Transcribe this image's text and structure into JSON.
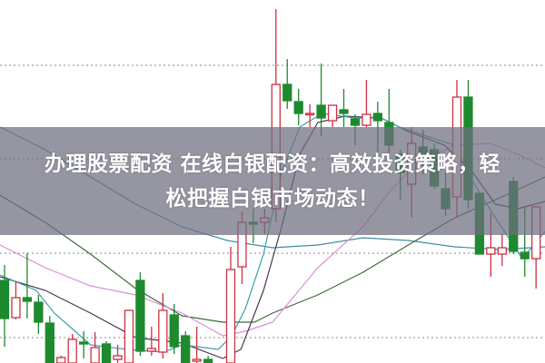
{
  "banner": {
    "line1": "办理股票配资 在线白银配资：高效投资策略，轻",
    "line2": "松把握白银市场动态！"
  },
  "chart_data": {
    "type": "candlestick",
    "title": "",
    "xlabel": "",
    "ylabel": "",
    "grid": "horizontal-dotted",
    "gridlines": [
      28,
      121,
      225,
      328
    ],
    "colors": {
      "up": "#d03040",
      "down": "#1e8a2e",
      "grid": "#a0a0a0"
    },
    "candles": [
      [
        91,
        108,
        18,
        49
      ],
      [
        50,
        90,
        48,
        72
      ],
      [
        72,
        121,
        49,
        68
      ],
      [
        67,
        75,
        32,
        45
      ],
      [
        44,
        52,
        -5,
        0
      ],
      [
        0,
        8,
        0,
        6
      ],
      [
        0,
        32,
        0,
        26
      ],
      [
        23,
        35,
        5,
        21
      ],
      [
        0,
        34,
        0,
        17
      ],
      [
        21,
        24,
        -2,
        0
      ],
      [
        4,
        20,
        0,
        8
      ],
      [
        0,
        58,
        0,
        58
      ],
      [
        91,
        100,
        8,
        13
      ],
      [
        13,
        40,
        8,
        16
      ],
      [
        12,
        77,
        5,
        58
      ],
      [
        53,
        65,
        10,
        18
      ],
      [
        30,
        35,
        -2,
        0
      ],
      [
        2,
        40,
        0,
        4
      ],
      [
        4,
        8,
        -2,
        0
      ],
      [
        -5,
        0,
        -8,
        -2
      ],
      [
        0,
        128,
        0,
        103
      ],
      [
        106,
        167,
        87,
        155
      ],
      [
        155,
        170,
        132,
        153
      ],
      [
        155,
        170,
        142,
        160
      ],
      [
        170,
        390,
        155,
        307
      ],
      [
        307,
        335,
        280,
        289
      ],
      [
        288,
        302,
        262,
        275
      ],
      [
        274,
        285,
        260,
        275
      ],
      [
        284,
        330,
        250,
        270
      ],
      [
        267,
        284,
        260,
        284
      ],
      [
        279,
        302,
        260,
        275
      ],
      [
        269,
        274,
        240,
        262
      ],
      [
        262,
        312,
        260,
        274
      ],
      [
        275,
        288,
        230,
        267
      ],
      [
        265,
        302,
        220,
        240
      ],
      [
        230,
        235,
        180,
        210
      ],
      [
        197,
        260,
        160,
        242
      ],
      [
        238,
        257,
        208,
        230
      ],
      [
        235,
        242,
        192,
        195
      ],
      [
        192,
        210,
        162,
        170
      ],
      [
        183,
        312,
        160,
        293
      ],
      [
        293,
        312,
        170,
        180
      ],
      [
        187,
        187,
        120,
        120
      ],
      [
        120,
        165,
        95,
        127
      ],
      [
        120,
        143,
        107,
        127
      ],
      [
        200,
        205,
        120,
        123
      ],
      [
        122,
        173,
        95,
        115
      ],
      [
        115,
        173,
        82,
        172
      ]
    ],
    "moving_averages": [
      {
        "color": "#3f8fa6",
        "points": [
          [
            -0.4,
            260
          ],
          [
            3.6,
            235
          ],
          [
            7.6,
            205
          ],
          [
            11.6,
            175
          ],
          [
            15.7,
            150
          ],
          [
            19.7,
            135
          ],
          [
            23.7,
            127
          ],
          [
            27.7,
            130
          ],
          [
            31.7,
            138
          ],
          [
            35.7,
            135
          ],
          [
            39.8,
            128
          ],
          [
            43.8,
            125
          ],
          [
            47.8,
            128
          ]
        ]
      },
      {
        "color": "#3d6b3a",
        "points": [
          [
            -0.4,
            185
          ],
          [
            3.6,
            155
          ],
          [
            7.6,
            120
          ],
          [
            11.6,
            82
          ],
          [
            15.7,
            52
          ],
          [
            19.3,
            45
          ],
          [
            22.1,
            45
          ],
          [
            23.7,
            55
          ],
          [
            27.7,
            75
          ],
          [
            31.7,
            100
          ],
          [
            35.7,
            130
          ],
          [
            39.8,
            160
          ],
          [
            43.8,
            182
          ],
          [
            47.8,
            205
          ]
        ]
      },
      {
        "color": "#d98fd8",
        "points": [
          [
            -0.4,
            130
          ],
          [
            3.6,
            105
          ],
          [
            7.6,
            85
          ],
          [
            11.6,
            75
          ],
          [
            15.7,
            55
          ],
          [
            19.3,
            30
          ],
          [
            21.3,
            35
          ],
          [
            23.7,
            45
          ],
          [
            27.7,
            105
          ],
          [
            31.7,
            150
          ],
          [
            34.1,
            190
          ],
          [
            36.5,
            220
          ],
          [
            39.8,
            240
          ],
          [
            42.97,
            242
          ],
          [
            45.4,
            230
          ],
          [
            47.8,
            215
          ]
        ]
      },
      {
        "color": "#4b3656",
        "points": [
          [
            -0.4,
            95
          ],
          [
            3.6,
            80
          ],
          [
            7.6,
            55
          ],
          [
            11.6,
            28
          ],
          [
            15.7,
            22
          ],
          [
            19.3,
            5
          ],
          [
            20.9,
            15
          ],
          [
            22.9,
            80
          ],
          [
            24.5,
            150
          ],
          [
            26.1,
            230
          ],
          [
            27.7,
            265
          ],
          [
            30.1,
            272
          ],
          [
            33.3,
            270
          ],
          [
            35.7,
            255
          ],
          [
            38.9,
            240
          ],
          [
            41.4,
            210
          ],
          [
            43.4,
            175
          ],
          [
            45.4,
            170
          ],
          [
            47.8,
            178
          ]
        ]
      },
      {
        "color": "#3aa0a8",
        "points": [
          [
            -0.4,
            97
          ],
          [
            2.8,
            80
          ],
          [
            4.4,
            55
          ],
          [
            7.6,
            20
          ],
          [
            10.8,
            15
          ],
          [
            14.1,
            12
          ],
          [
            15.7,
            20
          ],
          [
            18.9,
            15
          ],
          [
            20.1,
            30
          ],
          [
            21.3,
            60
          ],
          [
            22.9,
            120
          ],
          [
            24.5,
            210
          ],
          [
            26.1,
            260
          ],
          [
            28.1,
            275
          ],
          [
            30.9,
            270
          ],
          [
            33.3,
            270
          ],
          [
            34.9,
            260
          ],
          [
            37.3,
            250
          ],
          [
            39.8,
            240
          ],
          [
            41.4,
            200
          ],
          [
            43.4,
            160
          ],
          [
            45.8,
            115
          ],
          [
            47.8,
            145
          ]
        ]
      }
    ]
  }
}
